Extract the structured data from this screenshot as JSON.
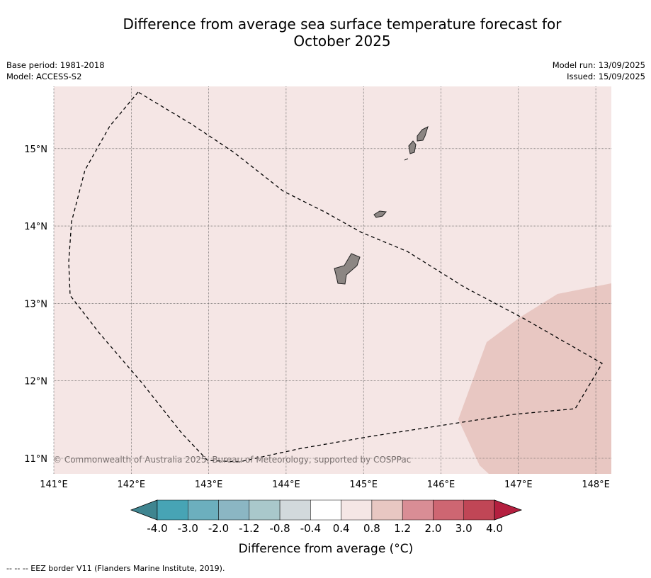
{
  "title_line1": "Difference from average sea surface temperature forecast for",
  "title_line2": "October 2025",
  "meta": {
    "base_period": "Base period: 1981-2018",
    "model": "Model: ACCESS-S2",
    "model_run": "Model run: 13/09/2025",
    "issued": "Issued: 15/09/2025"
  },
  "map": {
    "lon_range": [
      141.0,
      148.2
    ],
    "lat_range": [
      10.8,
      15.8
    ],
    "lon_ticks": [
      {
        "value": 141,
        "label": "141°E"
      },
      {
        "value": 142,
        "label": "142°E"
      },
      {
        "value": 143,
        "label": "143°E"
      },
      {
        "value": 144,
        "label": "144°E"
      },
      {
        "value": 145,
        "label": "145°E"
      },
      {
        "value": 146,
        "label": "146°E"
      },
      {
        "value": 147,
        "label": "147°E"
      },
      {
        "value": 148,
        "label": "148°E"
      }
    ],
    "lat_ticks": [
      {
        "value": 11,
        "label": "11°N"
      },
      {
        "value": 12,
        "label": "12°N"
      },
      {
        "value": 13,
        "label": "13°N"
      },
      {
        "value": 14,
        "label": "14°N"
      },
      {
        "value": 15,
        "label": "15°N"
      }
    ],
    "background_anomaly_class": "0.4 to 0.8",
    "background_color": "#f5e6e5",
    "warm_patch_class": "0.8 to 1.2",
    "warm_patch_color": "#e8c7c2",
    "land_color": "#8c8683",
    "copyright": "© Commonwealth of Australia 2025, Bureau of Meteorology, supported by COSPPac"
  },
  "colorbar": {
    "label": "Difference from average (°C)",
    "ticks": [
      "-4.0",
      "-3.0",
      "-2.0",
      "-1.2",
      "-0.8",
      "-0.4",
      "0.4",
      "0.8",
      "1.2",
      "2.0",
      "3.0",
      "4.0"
    ],
    "under_color": "#3f8590",
    "over_color": "#b41f3f",
    "colors": [
      "#47a4b5",
      "#6cafbe",
      "#8bb6c3",
      "#a9c8cb",
      "#d2d9dc",
      "#ffffff",
      "#f5e6e5",
      "#e8c7c2",
      "#d98d95",
      "#ce6672",
      "#c04656"
    ]
  },
  "footer": "--  --  -- EEZ border V11 (Flanders Marine Institute, 2019)."
}
